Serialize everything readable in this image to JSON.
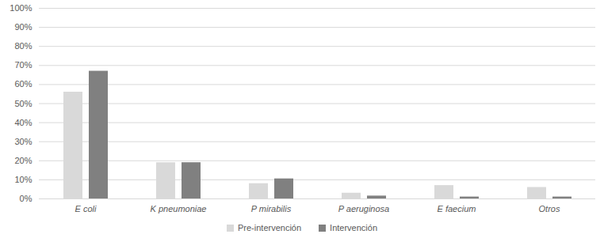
{
  "chart_data": {
    "type": "bar",
    "categories": [
      "E coli",
      "K pneumoniae",
      "P mirabilis",
      "P aeruginosa",
      "E faecium",
      "Otros"
    ],
    "series": [
      {
        "name": "Pre-intervención",
        "color": "#d9d9d9",
        "values": [
          56,
          19,
          8,
          3,
          7,
          6
        ]
      },
      {
        "name": "Intervención",
        "color": "#808080",
        "values": [
          67,
          19,
          10.5,
          1.5,
          1,
          1
        ]
      }
    ],
    "ylim": [
      0,
      100
    ],
    "yticks": [
      {
        "value": 0,
        "label": "0%"
      },
      {
        "value": 10,
        "label": "10%"
      },
      {
        "value": 20,
        "label": "20%"
      },
      {
        "value": 30,
        "label": "30%"
      },
      {
        "value": 40,
        "label": "40%"
      },
      {
        "value": 50,
        "label": "50%"
      },
      {
        "value": 60,
        "label": "60%"
      },
      {
        "value": 70,
        "label": "70%"
      },
      {
        "value": 80,
        "label": "80%"
      },
      {
        "value": 90,
        "label": "90%"
      },
      {
        "value": 100,
        "label": "100%"
      }
    ],
    "grid": true,
    "legend": "bottom"
  }
}
